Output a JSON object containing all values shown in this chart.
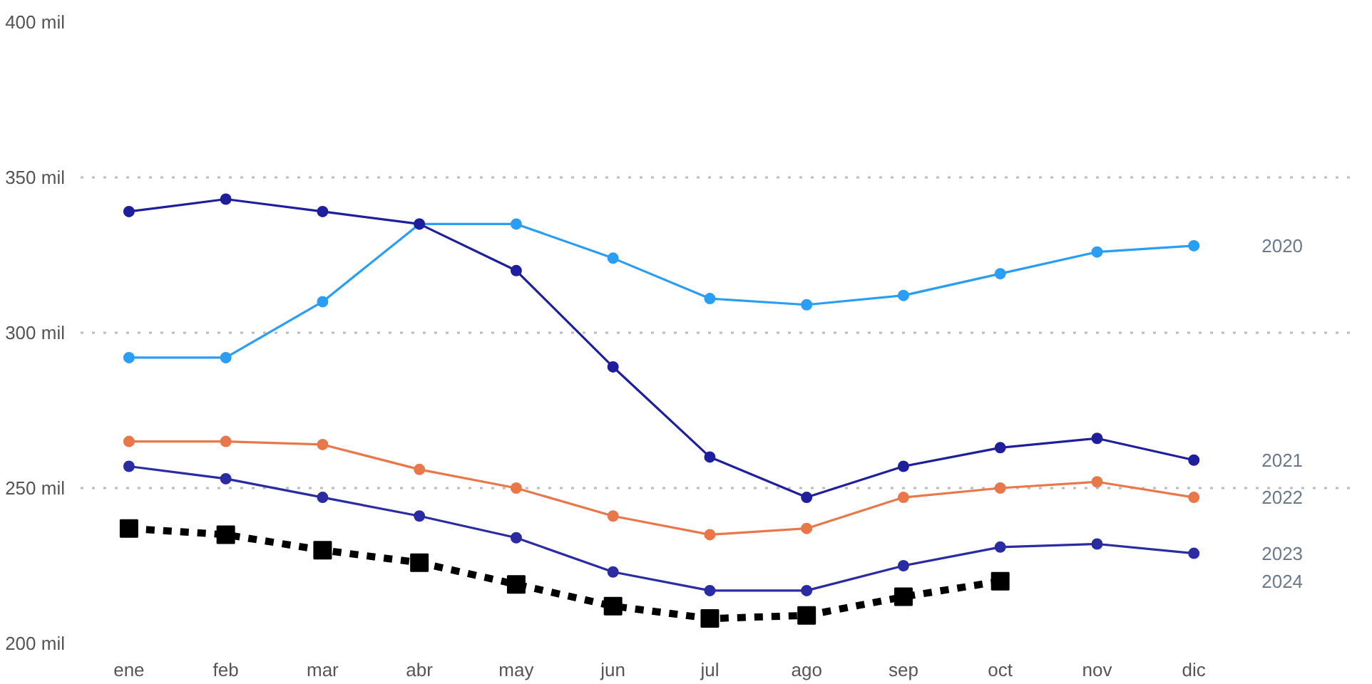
{
  "chart_data": {
    "type": "line",
    "categories": [
      "ene",
      "feb",
      "mar",
      "abr",
      "may",
      "jun",
      "jul",
      "ago",
      "sep",
      "oct",
      "nov",
      "dic"
    ],
    "ylim": [
      200,
      400
    ],
    "yticks": [
      {
        "value": 200,
        "label": "200 mil"
      },
      {
        "value": 250,
        "label": "250 mil"
      },
      {
        "value": 300,
        "label": "300 mil"
      },
      {
        "value": 350,
        "label": "350 mil"
      },
      {
        "value": 400,
        "label": "400 mil"
      }
    ],
    "grid": "y",
    "marker": "circle",
    "line_style": "solid",
    "series": [
      {
        "name": "2020",
        "color": "#2a9df4",
        "values": [
          292,
          292,
          310,
          335,
          335,
          324,
          311,
          309,
          312,
          319,
          326,
          328
        ]
      },
      {
        "name": "2021",
        "color": "#1f1f9e",
        "values": [
          339,
          343,
          339,
          335,
          320,
          289,
          260,
          247,
          257,
          263,
          266,
          259
        ]
      },
      {
        "name": "2022",
        "color": "#e8774a",
        "values": [
          265,
          265,
          264,
          256,
          250,
          241,
          235,
          237,
          247,
          250,
          252,
          247
        ]
      },
      {
        "name": "2023",
        "color": "#2b2ba3",
        "values": [
          257,
          253,
          247,
          241,
          234,
          223,
          217,
          217,
          225,
          231,
          232,
          229
        ]
      },
      {
        "name": "2024",
        "color": "#000000",
        "marker": "square",
        "line_style": "dashed",
        "values": [
          237,
          235,
          230,
          226,
          219,
          212,
          208,
          209,
          215,
          220,
          null,
          null
        ]
      }
    ]
  }
}
